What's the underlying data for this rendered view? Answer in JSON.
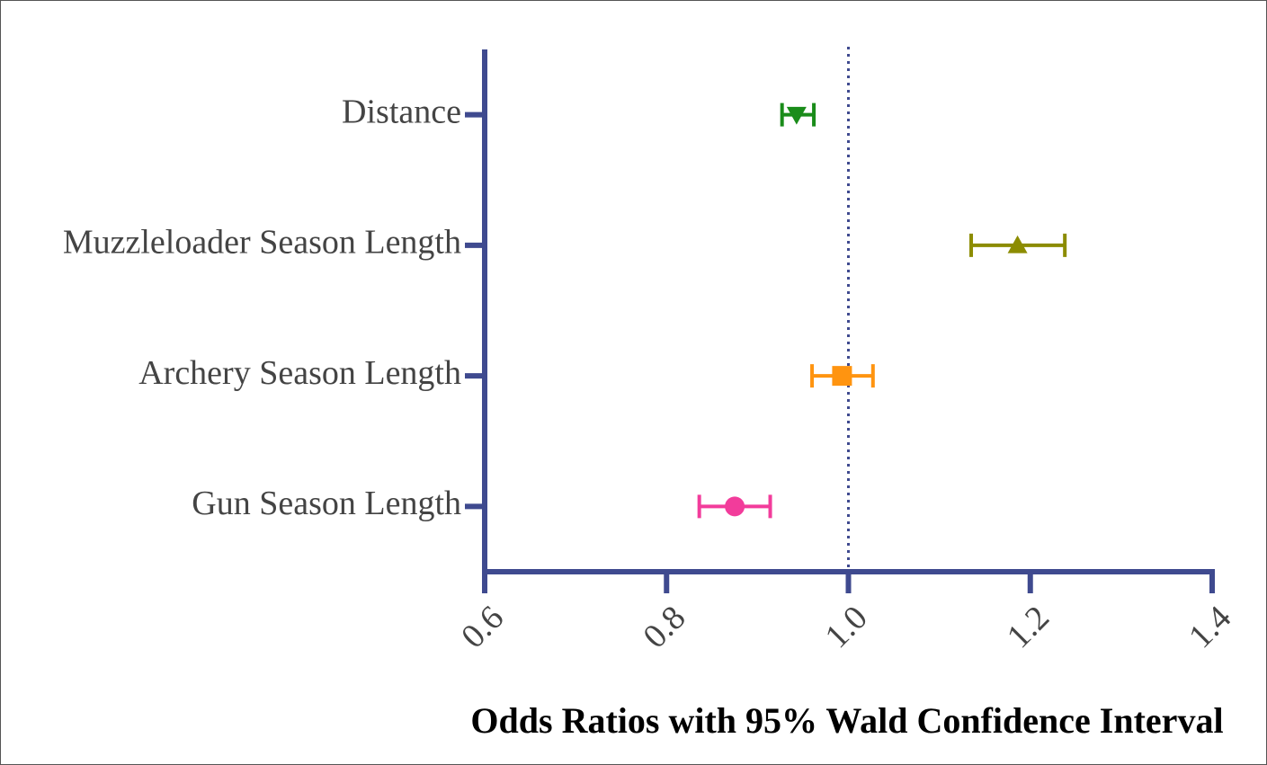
{
  "chart_data": {
    "type": "forest",
    "title": "Odds Ratios with 95% Wald Confidence Interval",
    "categories": [
      "Distance",
      "Muzzleloader Season Length",
      "Archery Season Length",
      "Gun Season Length"
    ],
    "values": [
      0.943,
      1.186,
      0.993,
      0.875
    ],
    "lower": [
      0.927,
      1.135,
      0.96,
      0.836
    ],
    "upper": [
      0.962,
      1.238,
      1.027,
      0.914
    ],
    "colors": [
      "#1a8c1a",
      "#8c8c00",
      "#ff9410",
      "#f23c9b"
    ],
    "markers": [
      "triangle-down",
      "triangle",
      "square",
      "circle"
    ],
    "axis_color": "#3f4a8f",
    "reference_line": 1.0,
    "xlim": [
      0.6,
      1.4
    ],
    "xticks": [
      0.6,
      0.8,
      {
        "value": 1.0,
        "label": "1.0"
      },
      1.2,
      1.4
    ]
  }
}
